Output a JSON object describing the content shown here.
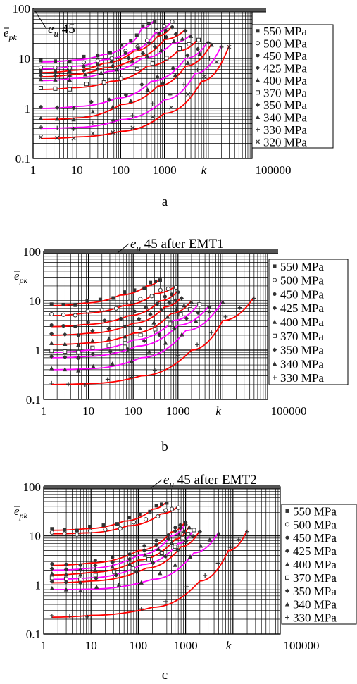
{
  "chart_data": [
    {
      "panel_label": "a",
      "type": "scatter",
      "x_scale": "log",
      "y_scale": "log",
      "xlim": [
        1,
        100000
      ],
      "ylim": [
        0.1,
        100
      ],
      "x_ticks": [
        "1",
        "10",
        "100",
        "1000",
        "100000"
      ],
      "y_ticks": [
        "0.1",
        "1",
        "10",
        "100"
      ],
      "xlabel": "k",
      "ylabel": "ē_pk",
      "limit_line": {
        "label": "e_u 45",
        "y": 100
      },
      "grid": true,
      "legend_position": "right",
      "series": [
        {
          "name": "550 MPa",
          "marker": "square",
          "fit_color": "#ff00ff",
          "points": [
            [
              1.5,
              8.5
            ],
            [
              8,
              9.3
            ],
            [
              40,
              12
            ],
            [
              150,
              20
            ],
            [
              300,
              40
            ],
            [
              600,
              60
            ]
          ]
        },
        {
          "name": "500 MPa",
          "marker": "circle",
          "fit_color": "#ff00ff",
          "points": [
            [
              1.5,
              6.2
            ],
            [
              8,
              7
            ],
            [
              40,
              9.5
            ],
            [
              200,
              15
            ],
            [
              600,
              32
            ],
            [
              1500,
              58
            ]
          ]
        },
        {
          "name": "450 MPa",
          "marker": "dot",
          "fit_color": "#ff0000",
          "points": [
            [
              1.5,
              5.2
            ],
            [
              8,
              5.8
            ],
            [
              40,
              8
            ],
            [
              200,
              14
            ],
            [
              700,
              28
            ],
            [
              1500,
              45
            ]
          ]
        },
        {
          "name": "425 MPa",
          "marker": "diamond",
          "fit_color": "#ff0000",
          "points": [
            [
              1.5,
              4.3
            ],
            [
              8,
              4.8
            ],
            [
              40,
              6.5
            ],
            [
              250,
              11
            ],
            [
              1000,
              24
            ],
            [
              3000,
              38
            ]
          ]
        },
        {
          "name": "400 MPa",
          "marker": "triangle",
          "fit_color": "#ff00ff",
          "points": [
            [
              1.5,
              3.6
            ],
            [
              8,
              4
            ],
            [
              50,
              5.5
            ],
            [
              300,
              10
            ],
            [
              1500,
              20
            ],
            [
              4000,
              30
            ]
          ]
        },
        {
          "name": "370 MPa",
          "marker": "open-square",
          "fit_color": "#ff0000",
          "points": [
            [
              1.5,
              2.4
            ],
            [
              8,
              2.6
            ],
            [
              60,
              3.5
            ],
            [
              400,
              7
            ],
            [
              2000,
              14
            ],
            [
              6000,
              25
            ]
          ]
        },
        {
          "name": "350 MPa",
          "marker": "diamond",
          "fit_color": "#ff00ff",
          "points": [
            [
              1.5,
              1
            ],
            [
              10,
              1.1
            ],
            [
              80,
              1.6
            ],
            [
              500,
              3.5
            ],
            [
              3000,
              10
            ],
            [
              10000,
              22
            ]
          ]
        },
        {
          "name": "340 MPa",
          "marker": "triangle",
          "fit_color": "#ff0000",
          "points": [
            [
              1.5,
              0.6
            ],
            [
              10,
              0.65
            ],
            [
              100,
              1.2
            ],
            [
              700,
              2.8
            ],
            [
              3000,
              7
            ],
            [
              12000,
              20
            ]
          ]
        },
        {
          "name": "330 MPa",
          "marker": "plus",
          "fit_color": "#ff00ff",
          "points": [
            [
              1.5,
              0.4
            ],
            [
              10,
              0.42
            ],
            [
              100,
              0.6
            ],
            [
              1000,
              1.5
            ],
            [
              5000,
              5
            ],
            [
              20000,
              18
            ]
          ]
        },
        {
          "name": "320 MPa",
          "marker": "cross",
          "fit_color": "#ff0000",
          "points": [
            [
              1.5,
              0.25
            ],
            [
              10,
              0.27
            ],
            [
              100,
              0.35
            ],
            [
              1000,
              0.8
            ],
            [
              7000,
              3.5
            ],
            [
              30000,
              18
            ]
          ]
        }
      ]
    },
    {
      "panel_label": "b",
      "type": "scatter",
      "x_scale": "log",
      "y_scale": "log",
      "xlim": [
        1,
        100000
      ],
      "ylim": [
        0.1,
        100
      ],
      "x_ticks": [
        "1",
        "10",
        "100",
        "1000",
        "100000"
      ],
      "y_ticks": [
        "0.1",
        "1",
        "10",
        "100"
      ],
      "xlabel": "k",
      "ylabel": "ē_pk",
      "limit_line": {
        "label": "e_u 45 after EMT1",
        "y": 70
      },
      "grid": true,
      "legend_position": "right",
      "series": [
        {
          "name": "550 MPa",
          "marker": "square",
          "fit_color": "#ff0000",
          "points": [
            [
              1.5,
              8
            ],
            [
              8,
              9
            ],
            [
              50,
              13
            ],
            [
              200,
              20
            ],
            [
              400,
              28
            ]
          ]
        },
        {
          "name": "500 MPa",
          "marker": "circle",
          "fit_color": "#ff0000",
          "points": [
            [
              1.5,
              5
            ],
            [
              8,
              5.6
            ],
            [
              60,
              8
            ],
            [
              300,
              14
            ],
            [
              900,
              20
            ]
          ]
        },
        {
          "name": "450 MPa",
          "marker": "dot",
          "fit_color": "#ff0000",
          "points": [
            [
              1.5,
              3
            ],
            [
              8,
              3.3
            ],
            [
              80,
              5
            ],
            [
              400,
              10
            ],
            [
              1000,
              16
            ]
          ]
        },
        {
          "name": "425 MPa",
          "marker": "diamond",
          "fit_color": "#ff0000",
          "points": [
            [
              1.5,
              2
            ],
            [
              10,
              2.2
            ],
            [
              100,
              3.5
            ],
            [
              500,
              7.5
            ],
            [
              1200,
              12
            ]
          ]
        },
        {
          "name": "400 MPa",
          "marker": "triangle",
          "fit_color": "#ff0000",
          "points": [
            [
              1.5,
              1.3
            ],
            [
              10,
              1.4
            ],
            [
              100,
              2.2
            ],
            [
              700,
              5.5
            ],
            [
              2000,
              10
            ]
          ]
        },
        {
          "name": "370 MPa",
          "marker": "open-square",
          "fit_color": "#ff00ff",
          "points": [
            [
              1.5,
              0.9
            ],
            [
              10,
              1
            ],
            [
              100,
              1.6
            ],
            [
              800,
              4
            ],
            [
              3000,
              9
            ]
          ]
        },
        {
          "name": "350 MPa",
          "marker": "diamond",
          "fit_color": "#ff00ff",
          "points": [
            [
              1.5,
              0.7
            ],
            [
              10,
              0.75
            ],
            [
              120,
              1.2
            ],
            [
              1000,
              3.2
            ],
            [
              5000,
              8
            ]
          ]
        },
        {
          "name": "340 MPa",
          "marker": "triangle",
          "fit_color": "#ff00ff",
          "points": [
            [
              1.5,
              0.4
            ],
            [
              10,
              0.42
            ],
            [
              150,
              0.7
            ],
            [
              1500,
              2.5
            ],
            [
              10000,
              10
            ]
          ]
        },
        {
          "name": "330 MPa",
          "marker": "plus",
          "fit_color": "#ff0000",
          "points": [
            [
              1.5,
              0.2
            ],
            [
              10,
              0.21
            ],
            [
              150,
              0.3
            ],
            [
              2000,
              1
            ],
            [
              10000,
              4
            ],
            [
              50000,
              12
            ]
          ]
        }
      ]
    },
    {
      "panel_label": "c",
      "type": "scatter",
      "x_scale": "log",
      "y_scale": "log",
      "xlim": [
        1,
        100000
      ],
      "ylim": [
        0.1,
        100
      ],
      "x_ticks": [
        "1",
        "10",
        "100",
        "1000",
        "100000"
      ],
      "y_ticks": [
        "0.1",
        "1",
        "10",
        "100"
      ],
      "xlabel": "k",
      "ylabel": "ē_pk",
      "limit_line": {
        "label": "e_u 45 after EMT2",
        "y": 90
      },
      "grid": true,
      "legend_position": "right",
      "series": [
        {
          "name": "550 MPa",
          "marker": "square",
          "fit_color": "#ff0000",
          "points": [
            [
              1.5,
              13
            ],
            [
              8,
              14
            ],
            [
              50,
              20
            ],
            [
              200,
              35
            ],
            [
              400,
              50
            ]
          ]
        },
        {
          "name": "500 MPa",
          "marker": "circle",
          "fit_color": "#ff0000",
          "points": [
            [
              1.5,
              11
            ],
            [
              8,
              11.5
            ],
            [
              60,
              16
            ],
            [
              300,
              28
            ],
            [
              700,
              40
            ]
          ]
        },
        {
          "name": "450 MPa",
          "marker": "dot",
          "fit_color": "#ff0000",
          "points": [
            [
              1.5,
              2.5
            ],
            [
              10,
              2.8
            ],
            [
              100,
              5
            ],
            [
              500,
              12
            ],
            [
              1000,
              20
            ]
          ]
        },
        {
          "name": "425 MPa",
          "marker": "diamond",
          "fit_color": "#ff00ff",
          "points": [
            [
              1.5,
              2
            ],
            [
              10,
              2.2
            ],
            [
              100,
              4
            ],
            [
              500,
              10
            ],
            [
              1000,
              18
            ]
          ]
        },
        {
          "name": "400 MPa",
          "marker": "triangle",
          "fit_color": "#ff0000",
          "points": [
            [
              1.5,
              1.6
            ],
            [
              10,
              1.8
            ],
            [
              100,
              3.2
            ],
            [
              600,
              8.5
            ],
            [
              1200,
              16
            ]
          ]
        },
        {
          "name": "370 MPa",
          "marker": "open-square",
          "fit_color": "#ff00ff",
          "points": [
            [
              1.5,
              1.3
            ],
            [
              10,
              1.4
            ],
            [
              120,
              2.6
            ],
            [
              700,
              7
            ],
            [
              1500,
              14
            ]
          ]
        },
        {
          "name": "350 MPa",
          "marker": "diamond",
          "fit_color": "#ff0000",
          "points": [
            [
              1.5,
              1.1
            ],
            [
              10,
              1.2
            ],
            [
              150,
              2.2
            ],
            [
              800,
              6
            ],
            [
              2000,
              13
            ]
          ]
        },
        {
          "name": "340 MPa",
          "marker": "triangle",
          "fit_color": "#ff00ff",
          "points": [
            [
              1.5,
              0.8
            ],
            [
              10,
              0.82
            ],
            [
              200,
              1.3
            ],
            [
              1500,
              4.5
            ],
            [
              5000,
              12
            ]
          ]
        },
        {
          "name": "330 MPa",
          "marker": "plus",
          "fit_color": "#ff0000",
          "points": [
            [
              1.5,
              0.22
            ],
            [
              10,
              0.24
            ],
            [
              200,
              0.35
            ],
            [
              2000,
              1.2
            ],
            [
              8000,
              5
            ],
            [
              20000,
              13
            ]
          ]
        }
      ]
    }
  ]
}
